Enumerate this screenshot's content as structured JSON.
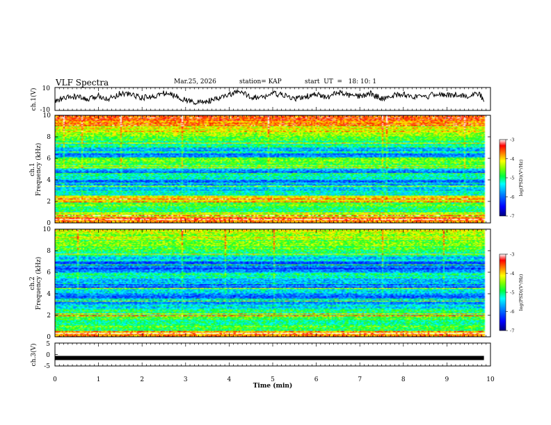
{
  "header": {
    "title": "VLF Spectra",
    "date": "Mar.25, 2026",
    "station": "station= KAP",
    "start": "start  UT  =   18: 10: 1"
  },
  "colors": {
    "spectrogram_scale": [
      "#000080",
      "#0000ff",
      "#0080ff",
      "#00ffff",
      "#00ff40",
      "#80ff00",
      "#ffff00",
      "#ff8000",
      "#ff0000",
      "#ffffff"
    ]
  },
  "chart_data": [
    {
      "type": "line",
      "name": "ch1-waveform",
      "ylabel": "ch.1(V)",
      "ylim": [
        -10,
        10
      ],
      "yticklabels": [
        "10",
        "-10"
      ],
      "x": [
        0,
        0.25,
        0.5,
        0.75,
        1,
        1.25,
        1.5,
        1.75,
        2,
        2.25,
        2.5,
        2.75,
        3,
        3.25,
        3.5,
        3.75,
        4,
        4.25,
        4.5,
        4.75,
        5,
        5.25,
        5.5,
        5.75,
        6,
        6.25,
        6.5,
        6.75,
        7,
        7.25,
        7.5,
        7.75,
        8,
        8.25,
        8.5,
        8.75,
        9,
        9.25,
        9.5,
        9.75,
        9.85
      ],
      "y": [
        -2,
        1,
        2,
        -1,
        3,
        0,
        5,
        4,
        1,
        2,
        5,
        3,
        -1,
        -3,
        -2,
        0,
        4,
        6,
        2,
        1,
        5,
        3,
        0,
        2,
        4,
        1,
        6,
        3,
        2,
        5,
        0,
        3,
        4,
        2,
        1,
        5,
        3,
        4,
        2,
        5,
        -2
      ],
      "note": "approximate envelope of the noisy ch.1 voltage trace"
    },
    {
      "type": "heatmap",
      "name": "ch1-spectrogram",
      "ylabel": "ch.1\nFrequency (kHz)",
      "ylim": [
        0,
        10
      ],
      "yticklabels": [
        "0",
        "2",
        "4",
        "6",
        "8",
        "10"
      ],
      "colorbar": {
        "label": "log(PSD)(V²/Hz)",
        "range": [
          -7,
          -3
        ],
        "ticklabels": [
          "-3",
          "-4",
          "-5",
          "-6",
          "-7"
        ]
      },
      "frequency_bands_khz": [
        0,
        0.5,
        1,
        1.5,
        2,
        2.5,
        3,
        3.5,
        4,
        4.5,
        5,
        5.5,
        6,
        6.5,
        7,
        7.5,
        8,
        8.5,
        9,
        9.5,
        10
      ],
      "mean_log_psd_per_band": [
        -3.6,
        -4.3,
        -4.9,
        -4.6,
        -4.2,
        -5.2,
        -5.6,
        -5.9,
        -5.3,
        -5.8,
        -5.1,
        -4.7,
        -5.9,
        -5.6,
        -5.2,
        -4.9,
        -4.6,
        -4.1,
        -3.7,
        -3.4
      ],
      "horizontal_lines_khz": [
        0.3,
        0.6,
        1.9,
        2.2,
        3.4,
        3.7,
        4.6,
        5.1,
        5.3,
        6.1,
        6.6,
        7.4
      ],
      "vertical_streaks_min": [
        0.2,
        0.6,
        1.5,
        2.9,
        4.9,
        7.5,
        7.6,
        9.4
      ]
    },
    {
      "type": "heatmap",
      "name": "ch2-spectrogram",
      "ylabel": "ch.2\nFrequency (kHz)",
      "ylim": [
        0,
        10
      ],
      "yticklabels": [
        "0",
        "2",
        "4",
        "6",
        "8",
        "10"
      ],
      "colorbar": {
        "label": "log(PSD)(V²/Hz)",
        "range": [
          -7,
          -3
        ],
        "ticklabels": [
          "-3",
          "-4",
          "-5",
          "-6",
          "-7"
        ]
      },
      "frequency_bands_khz": [
        0,
        0.5,
        1,
        1.5,
        2,
        2.5,
        3,
        3.5,
        4,
        4.5,
        5,
        5.5,
        6,
        6.5,
        7,
        7.5,
        8,
        8.5,
        9,
        9.5,
        10
      ],
      "mean_log_psd_per_band": [
        -3.9,
        -4.8,
        -5.1,
        -4.7,
        -5.0,
        -5.4,
        -5.7,
        -5.9,
        -5.5,
        -5.9,
        -5.5,
        -5.2,
        -6.0,
        -5.9,
        -5.4,
        -5.0,
        -4.7,
        -4.6,
        -4.4,
        -4.3
      ],
      "horizontal_lines_khz": [
        0.3,
        1.9,
        2.1,
        3.3,
        3.5,
        4.5,
        5.0,
        6.7,
        7.7
      ],
      "vertical_streaks_min": [
        0.5,
        2.9,
        3.9,
        5.0,
        7.5,
        8.9
      ]
    },
    {
      "type": "line",
      "name": "ch3-waveform",
      "ylabel": "ch.3(V)",
      "ylim": [
        -5,
        5
      ],
      "yticklabels": [
        "5",
        "0",
        "-5"
      ],
      "x": [
        0,
        9.85
      ],
      "y": [
        -1.5,
        -1.5
      ],
      "note": "thick dense trace near -1.5 V"
    }
  ],
  "time_axis": {
    "label": "Time  (min)",
    "range": [
      0,
      10
    ],
    "ticklabels": [
      "0",
      "1",
      "2",
      "3",
      "4",
      "5",
      "6",
      "7",
      "8",
      "9",
      "10"
    ]
  }
}
